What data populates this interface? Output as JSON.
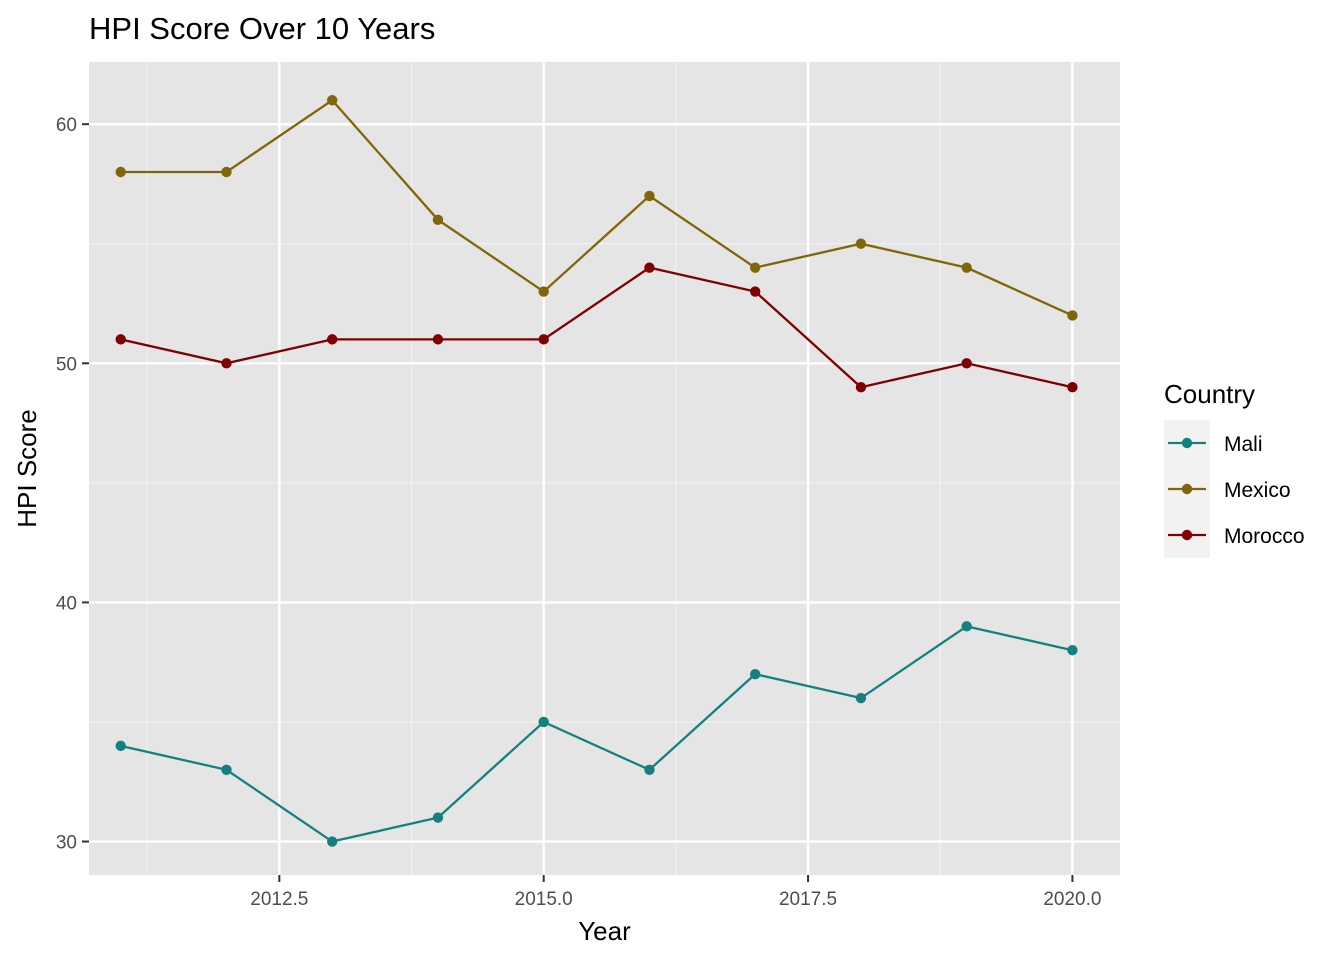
{
  "chart_data": {
    "type": "line",
    "title": "HPI Score Over 10 Years",
    "xlabel": "Year",
    "ylabel": "HPI Score",
    "x": [
      2011,
      2012,
      2013,
      2014,
      2015,
      2016,
      2017,
      2018,
      2019,
      2020
    ],
    "xlim": [
      2010.7,
      2020.45
    ],
    "ylim": [
      28.6,
      62.6
    ],
    "x_ticks": [
      2012.5,
      2015.0,
      2017.5,
      2020.0
    ],
    "x_tick_labels": [
      "2012.5",
      "2015.0",
      "2017.5",
      "2020.0"
    ],
    "y_ticks": [
      30,
      40,
      50,
      60
    ],
    "y_tick_labels": [
      "30",
      "40",
      "50",
      "60"
    ],
    "grid": true,
    "legend": {
      "title": "Country",
      "position": "right"
    },
    "series": [
      {
        "name": "Mali",
        "color": "#148080",
        "values": [
          34,
          33,
          30,
          31,
          35,
          33,
          37,
          36,
          39,
          38
        ]
      },
      {
        "name": "Mexico",
        "color": "#806608",
        "values": [
          58,
          58,
          61,
          56,
          53,
          57,
          54,
          55,
          54,
          52
        ]
      },
      {
        "name": "Morocco",
        "color": "#800000",
        "values": [
          51,
          50,
          51,
          51,
          51,
          54,
          53,
          49,
          50,
          49
        ]
      }
    ]
  }
}
